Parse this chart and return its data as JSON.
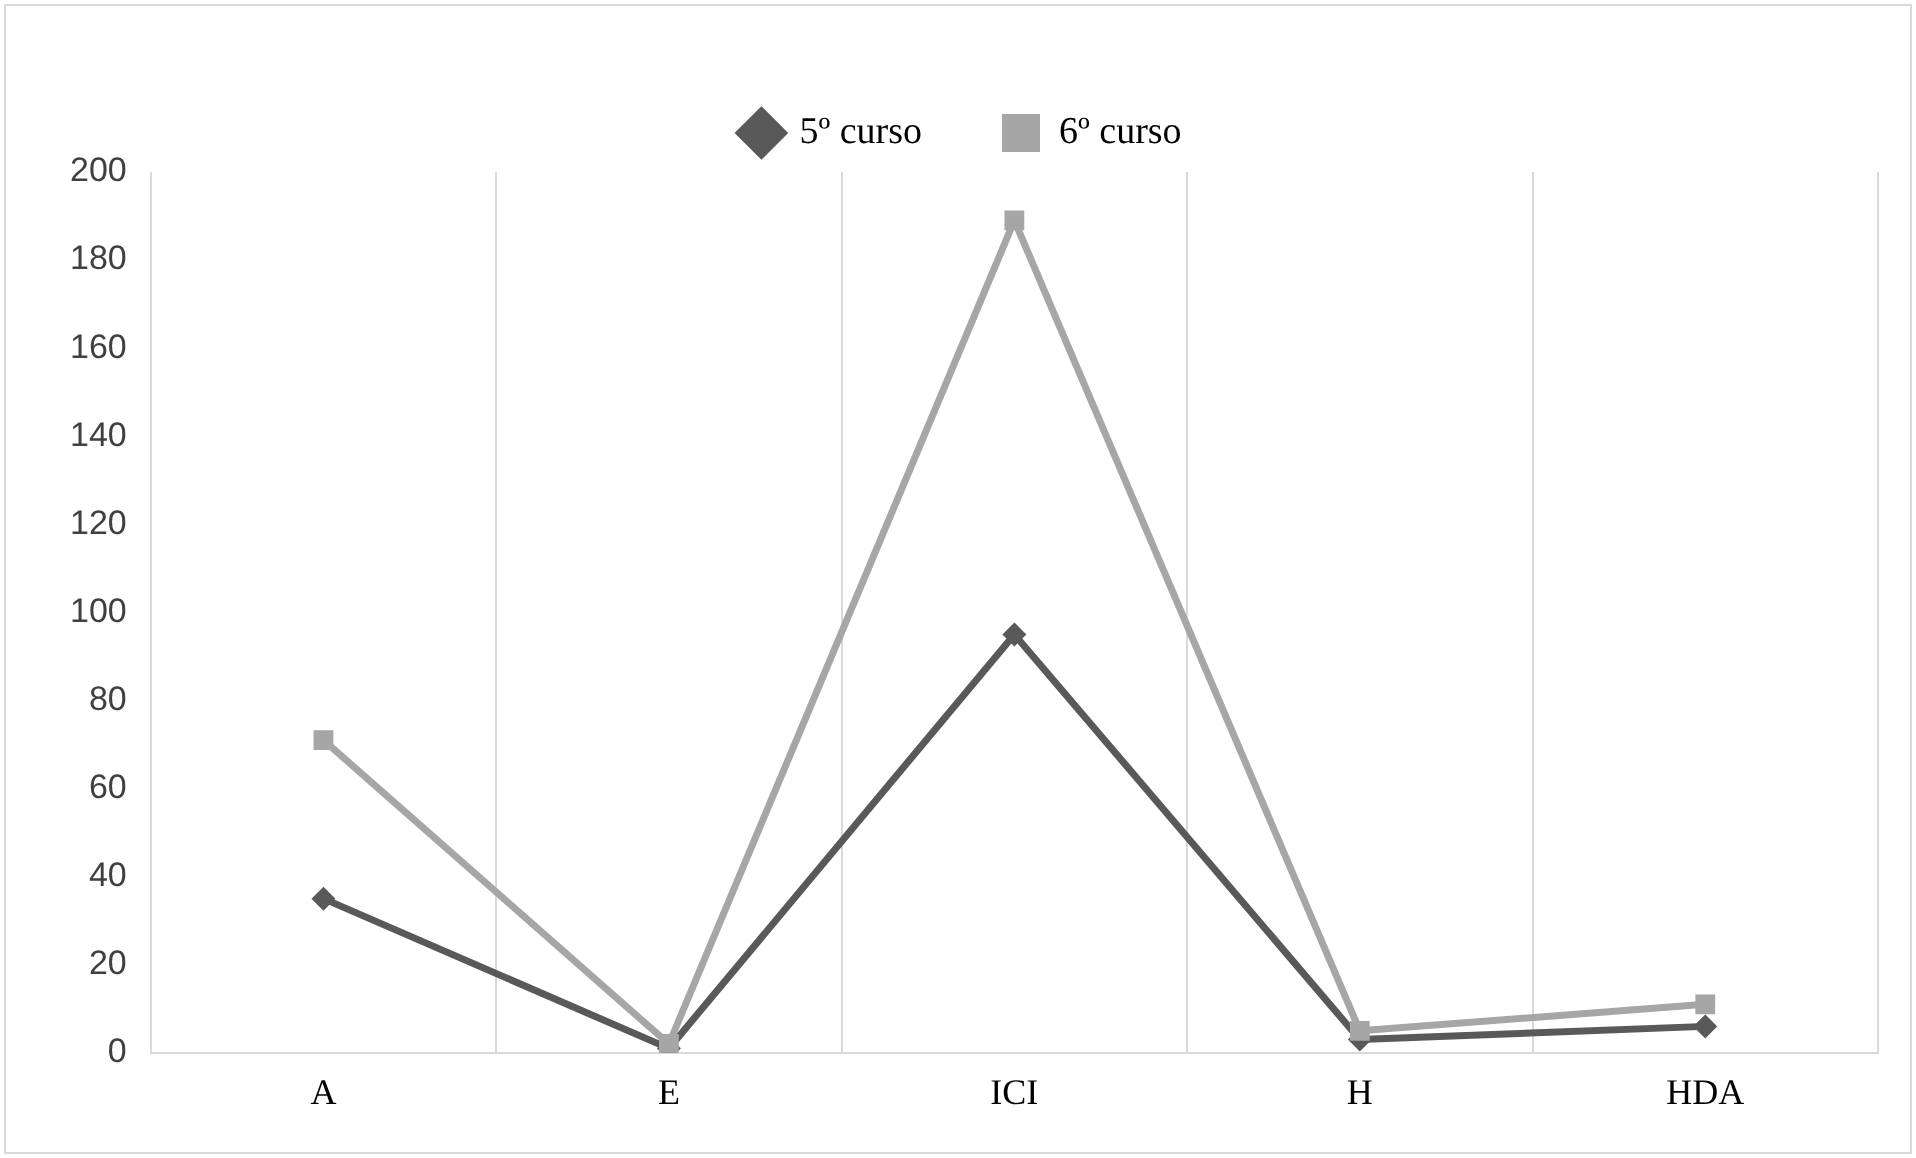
{
  "chart_data": {
    "type": "line",
    "categories": [
      "A",
      "E",
      "ICI",
      "H",
      "HDA"
    ],
    "series": [
      {
        "name": "5º curso",
        "color": "#595959",
        "marker": "diamond",
        "values": [
          35,
          1,
          95,
          3,
          6
        ]
      },
      {
        "name": "6º curso",
        "color": "#a6a6a6",
        "marker": "square",
        "values": [
          71,
          2,
          189,
          5,
          11
        ]
      }
    ],
    "ylim": [
      0,
      200
    ],
    "yticks": [
      0,
      20,
      40,
      60,
      80,
      100,
      120,
      140,
      160,
      180,
      200
    ],
    "grid": "x",
    "legend": "top"
  }
}
